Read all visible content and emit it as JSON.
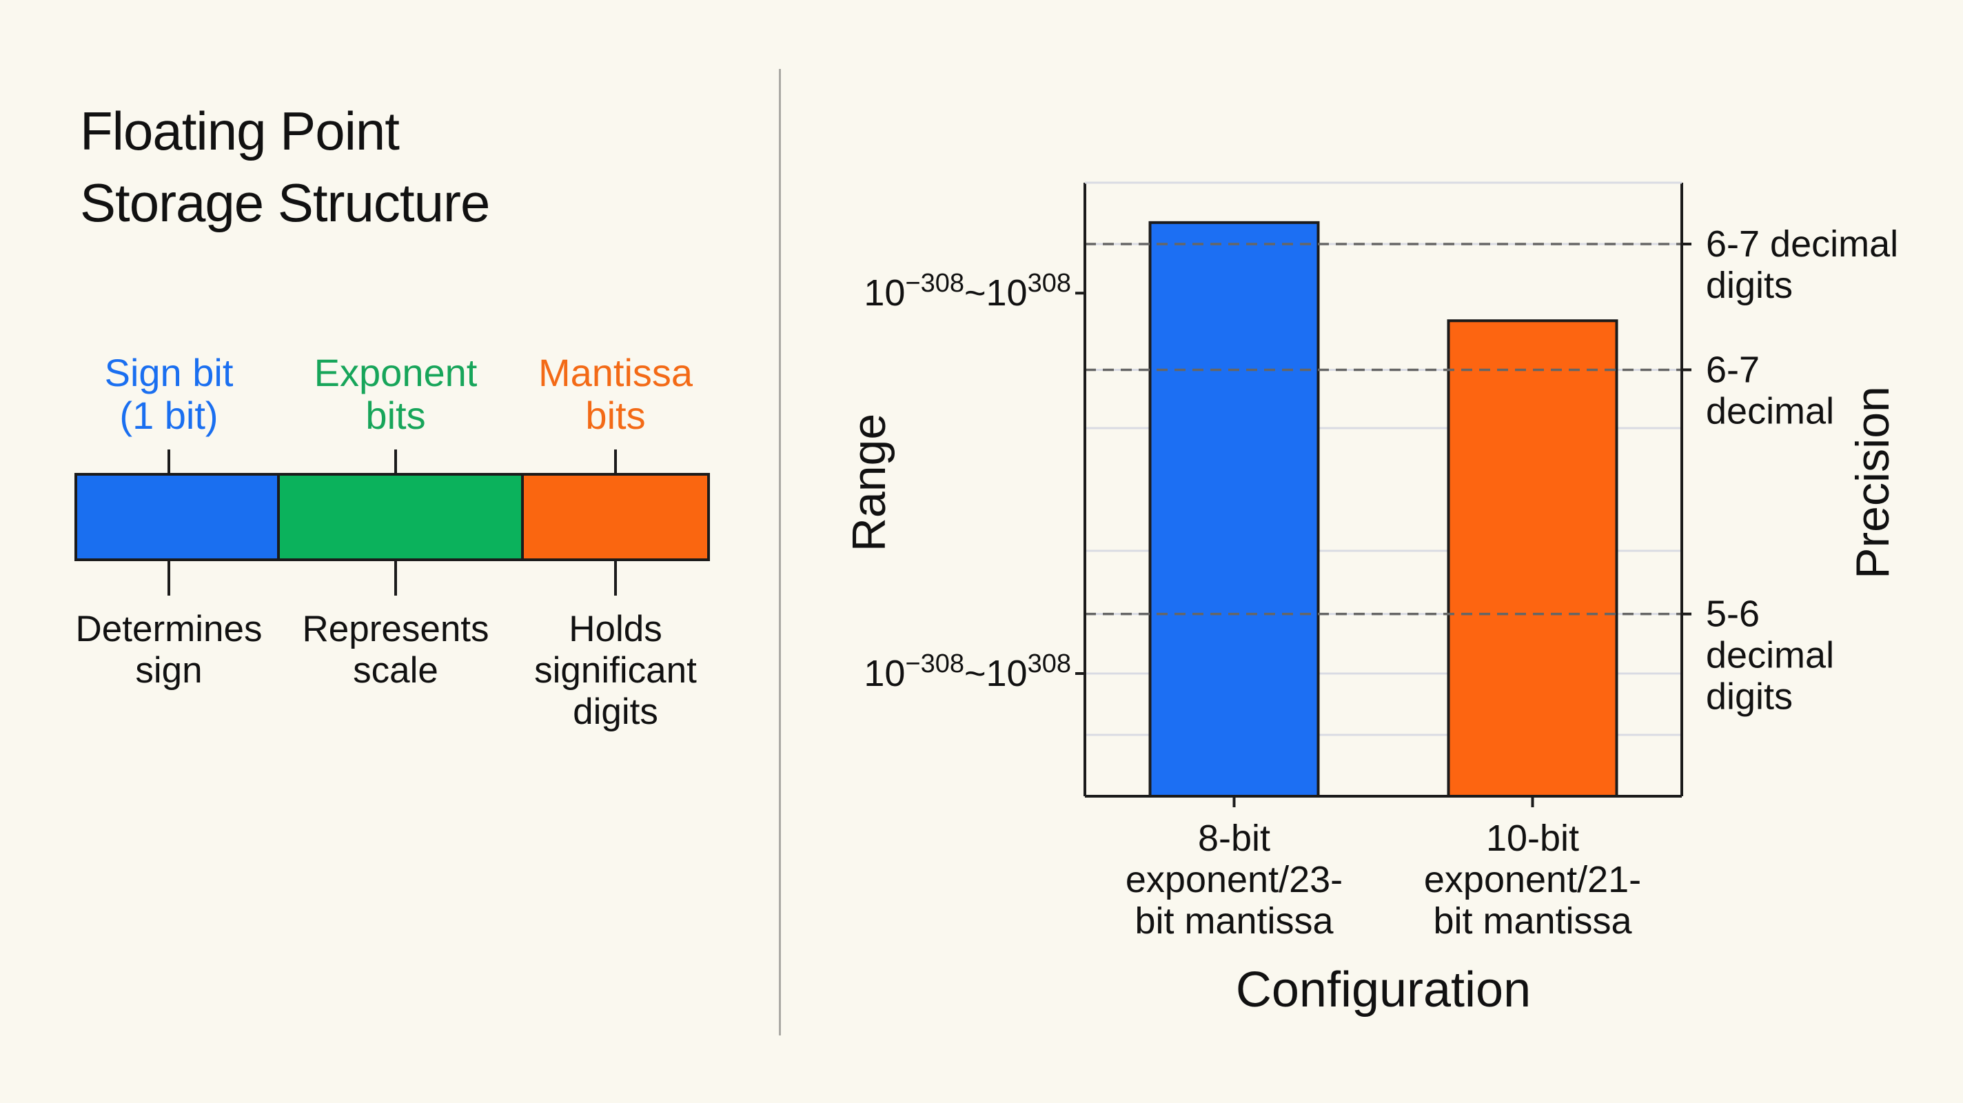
{
  "title": "Floating Point\nStorage Structure",
  "structure": {
    "segments": [
      {
        "label": "Sign bit\n(1 bit)",
        "description": "Determines\nsign",
        "color": "#1a6ff0"
      },
      {
        "label": "Exponent\nbits",
        "description": "Represents\nscale",
        "color": "#0bb25c"
      },
      {
        "label": "Mantissa\nbits",
        "description": "Holds\nsignificant\ndigits",
        "color": "#fa6610"
      }
    ]
  },
  "colors": {
    "sign_label": "#1a6ff0",
    "exponent_label": "#17a55a",
    "mantissa_label": "#f36a16",
    "background": "#faf8ef"
  },
  "chart_data": {
    "type": "bar",
    "categories": [
      "8-bit exponent/23-bit mantissa",
      "10-bit exponent/21-bit mantissa"
    ],
    "category_labels": [
      [
        "8-bit",
        "exponent/23-",
        "bit mantissa"
      ],
      [
        "10-bit",
        "exponent/21-",
        "bit mantissa"
      ]
    ],
    "values": [
      0.935,
      0.775
    ],
    "bar_colors": [
      "#1c6ff3",
      "#fd6511"
    ],
    "xlabel": "Configuration",
    "ylabel": "Range",
    "y2label": "Precision",
    "ylim": [
      0,
      1
    ],
    "left_ticks": [
      {
        "value": 0.82,
        "base": "10",
        "exp1": "−308",
        "mid": "~10",
        "exp2": "308"
      },
      {
        "value": 0.2,
        "base": "10",
        "exp1": "−308",
        "mid": "~10",
        "exp2": "308"
      }
    ],
    "right_ticks": [
      {
        "value": 0.9,
        "lines": [
          "6-7 decimal",
          "digits"
        ]
      },
      {
        "value": 0.695,
        "lines": [
          "6-7",
          "decimal"
        ]
      },
      {
        "value": 0.297,
        "lines": [
          "5-6",
          "decimal",
          "digits"
        ]
      }
    ],
    "grid": true
  }
}
